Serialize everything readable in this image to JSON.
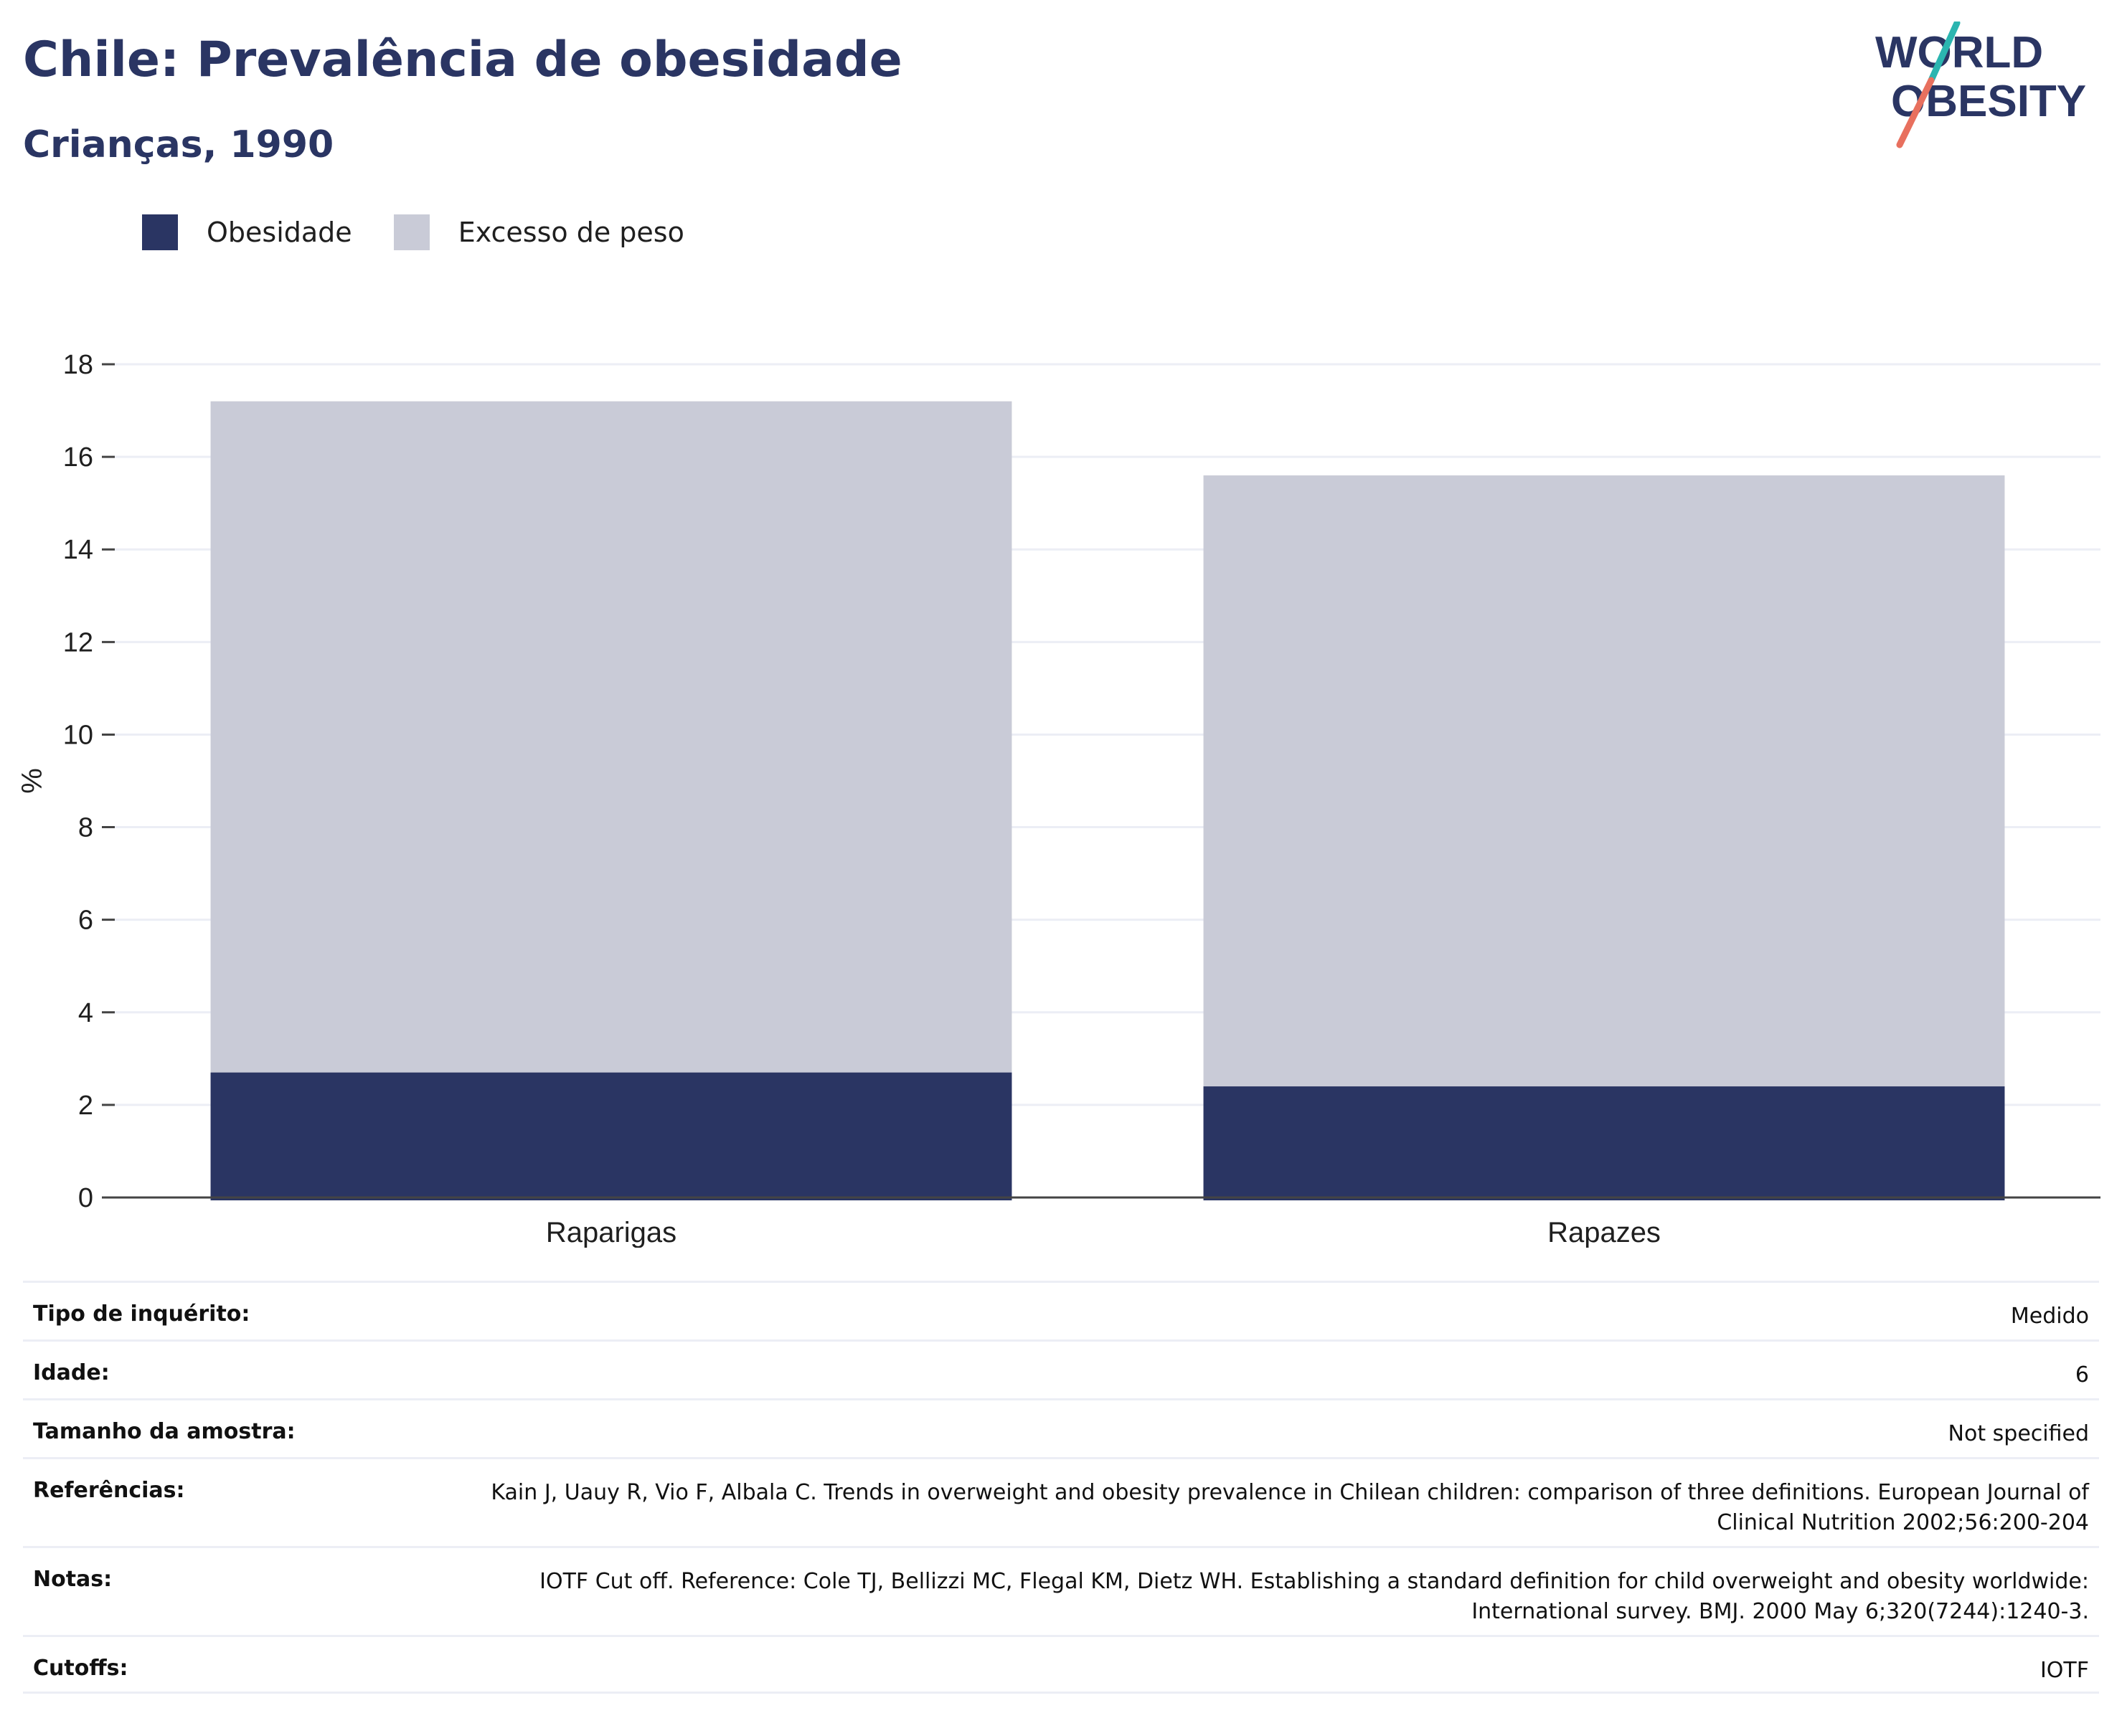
{
  "header": {
    "title": "Chile: Prevalência de obesidade",
    "subtitle": "Crianças, 1990"
  },
  "logo": {
    "line1": "WORLD",
    "line2": "OBESITY",
    "colors": {
      "text": "#2a3563",
      "teal": "#2bb5b0",
      "coral": "#e8705e"
    }
  },
  "colors": {
    "obesity": "#2a3563",
    "overweight": "#c9cbd7",
    "grid": "#eceef5",
    "axis": "#444444"
  },
  "chart_data": {
    "type": "bar",
    "stacked": "overlay",
    "categories": [
      "Raparigas",
      "Rapazes"
    ],
    "series": [
      {
        "name": "Obesidade",
        "values": [
          2.7,
          2.4
        ],
        "color": "#2a3563"
      },
      {
        "name": "Excesso de peso",
        "values": [
          17.2,
          15.6
        ],
        "color": "#c9cbd7"
      }
    ],
    "ylabel": "%",
    "ylim": [
      0,
      18
    ],
    "yticks": [
      0,
      2,
      4,
      6,
      8,
      10,
      12,
      14,
      16,
      18
    ],
    "grid": true,
    "legend": "top-left"
  },
  "meta": {
    "survey_type": {
      "label": "Tipo de inquérito:",
      "value": "Medido"
    },
    "age": {
      "label": "Idade:",
      "value": "6"
    },
    "sample_size": {
      "label": "Tamanho da amostra:",
      "value": "Not specified"
    },
    "references": {
      "label": "Referências:",
      "value": "Kain J, Uauy R, Vio F, Albala C. Trends in overweight and obesity prevalence in Chilean children: comparison of three definitions. European Journal of Clinical Nutrition 2002;56:200-204"
    },
    "notes": {
      "label": "Notas:",
      "value": "IOTF Cut off. Reference: Cole TJ, Bellizzi MC, Flegal KM, Dietz WH. Establishing a standard definition for child overweight and obesity worldwide: International survey. BMJ. 2000 May 6;320(7244):1240-3."
    },
    "cutoffs": {
      "label": "Cutoffs:",
      "value": "IOTF"
    }
  }
}
